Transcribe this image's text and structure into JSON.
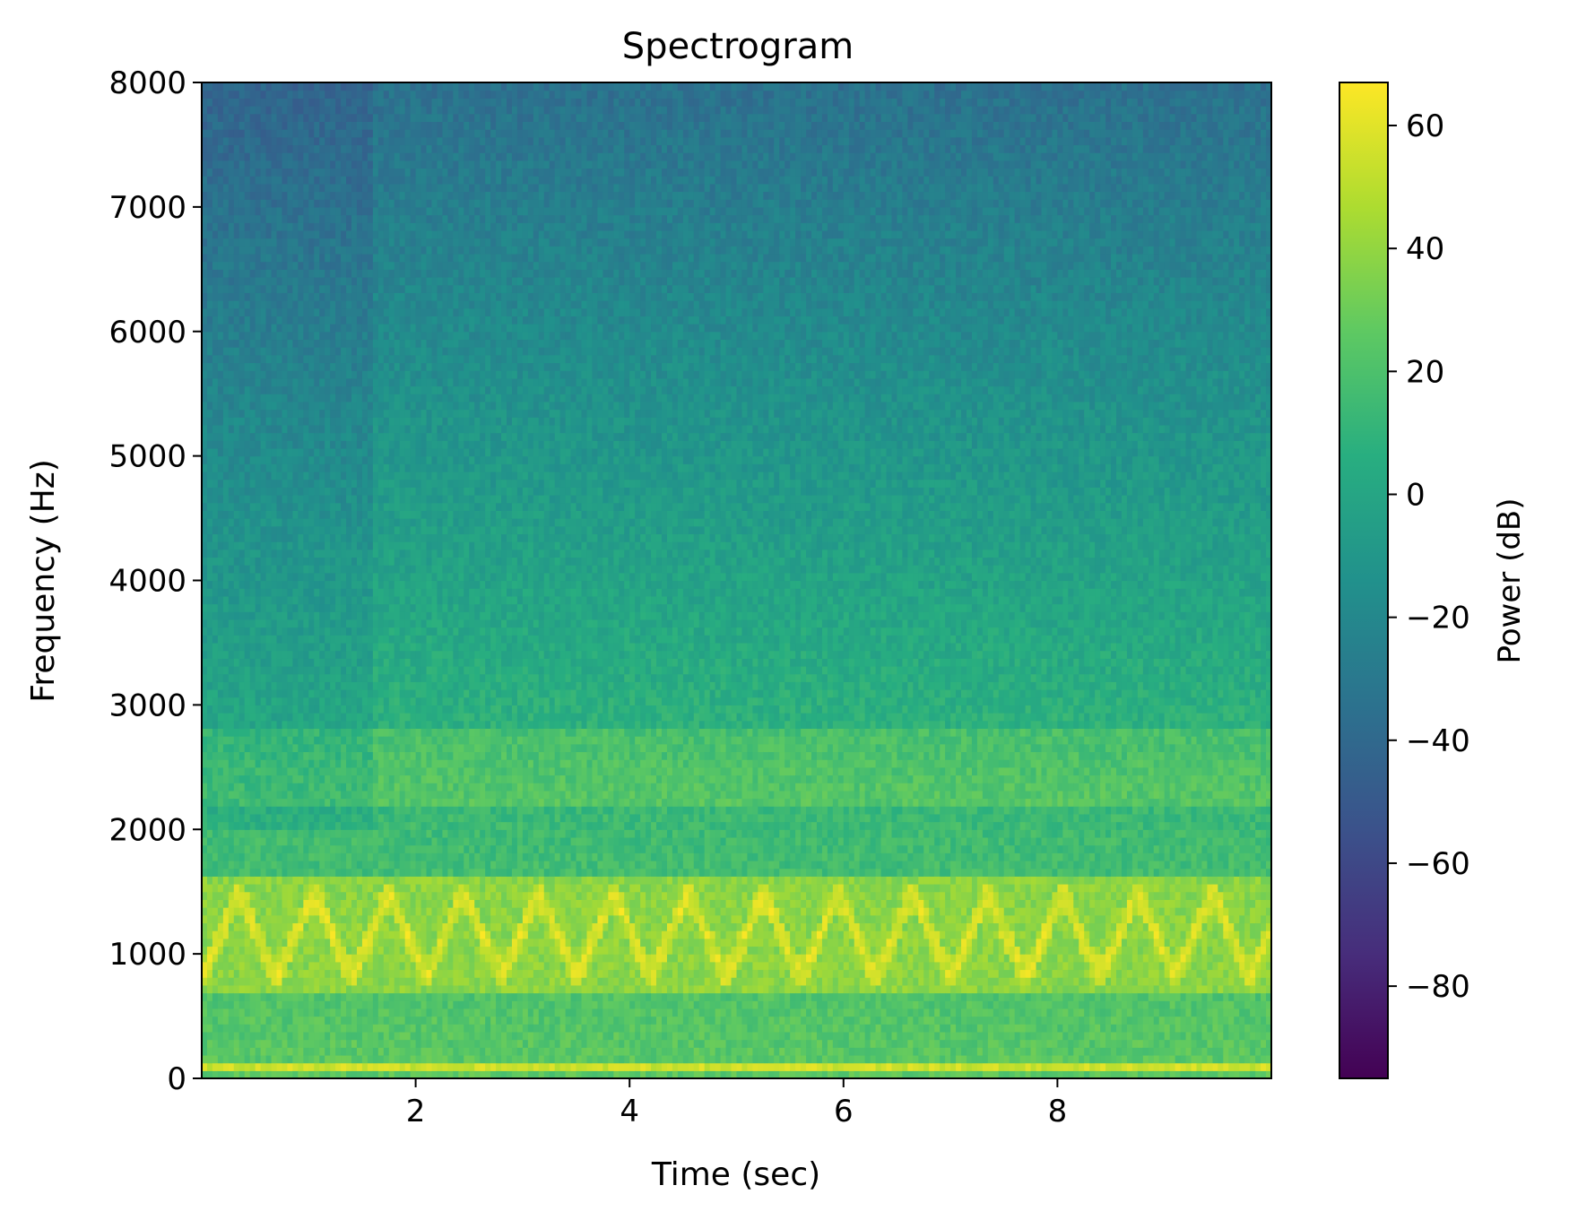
{
  "chart_data": {
    "type": "heatmap",
    "title": "Spectrogram",
    "xlabel": "Time (sec)",
    "ylabel": "Frequency (Hz)",
    "xlim": [
      0,
      10
    ],
    "ylim": [
      0,
      8000
    ],
    "x_ticks": [
      2,
      4,
      6,
      8
    ],
    "x_tick_labels": [
      "2",
      "4",
      "6",
      "8"
    ],
    "y_ticks": [
      0,
      1000,
      2000,
      3000,
      4000,
      5000,
      6000,
      7000,
      8000
    ],
    "y_tick_labels": [
      "0",
      "1000",
      "2000",
      "3000",
      "4000",
      "5000",
      "6000",
      "7000",
      "8000"
    ],
    "grid": false,
    "colormap": "viridis",
    "colorbar": {
      "label": "Power (dB)",
      "range": [
        -95,
        67
      ],
      "ticks": [
        60,
        40,
        20,
        0,
        -20,
        -40,
        -60,
        -80
      ],
      "tick_labels": [
        "60",
        "40",
        "20",
        "0",
        "−20",
        "−40",
        "−60",
        "−80"
      ]
    },
    "dominant_features": {
      "steady_band_hz": [
        50,
        150
      ],
      "steady_band_power_db": 55,
      "sweeping_tone_hz_range": [
        800,
        1500
      ],
      "sweeping_tone_power_db": 60,
      "harmonic_band_hz": [
        2200,
        2800
      ],
      "harmonic_band_power_db": 30,
      "low_band_power_db": 25,
      "high_freq_power_db": -35
    }
  }
}
